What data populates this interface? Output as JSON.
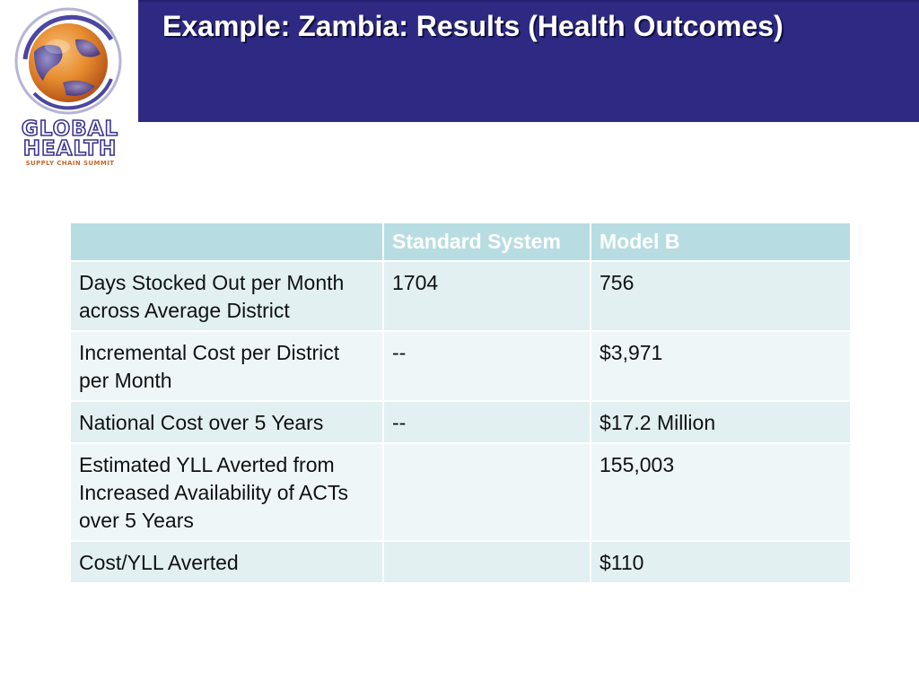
{
  "slide": {
    "title": "Example: Zambia: Results (Health Outcomes)"
  },
  "logo": {
    "line1": "GLOBAL",
    "line2": "HEALTH",
    "line3": "SUPPLY CHAIN SUMMIT",
    "icon": "globe-logo-icon",
    "colors": {
      "globe": "#e78c2f",
      "ring": "#3a3590",
      "text": "#3a3590"
    }
  },
  "colors": {
    "header_band": "#2e2a83",
    "table_header": "#b7dde2",
    "table_row_a": "#e2f0f2",
    "table_row_b": "#eef6f7"
  },
  "table": {
    "headers": [
      "",
      "Standard System",
      "Model B"
    ],
    "rows": [
      {
        "label": "Days Stocked Out per Month across Average District",
        "standard": "1704",
        "model_b": "756"
      },
      {
        "label": "Incremental Cost per District per Month",
        "standard": "--",
        "model_b": "$3,971"
      },
      {
        "label": "National Cost over 5 Years",
        "standard": "--",
        "model_b": "$17.2 Million"
      },
      {
        "label": "Estimated YLL Averted from Increased Availability of ACTs over 5 Years",
        "standard": "",
        "model_b": "155,003"
      },
      {
        "label": "Cost/YLL Averted",
        "standard": "",
        "model_b": "$110"
      }
    ]
  }
}
